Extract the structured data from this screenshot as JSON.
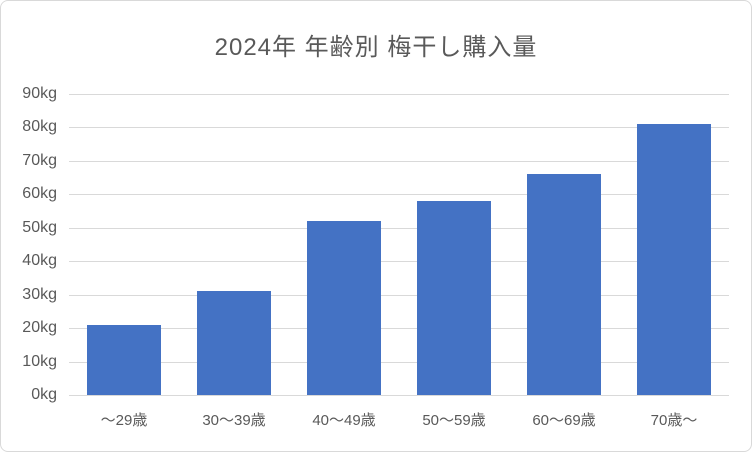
{
  "chart_data": {
    "type": "bar",
    "title": "2024年 年齢別 梅干し購入量",
    "categories": [
      "～29歳",
      "30～39歳",
      "40～49歳",
      "50～59歳",
      "60～69歳",
      "70歳～"
    ],
    "values": [
      21,
      31,
      52,
      58,
      66,
      81
    ],
    "unit": "kg",
    "ylim": [
      0,
      90
    ],
    "ytick_step": 10,
    "ytick_labels": [
      "0kg",
      "10kg",
      "20kg",
      "30kg",
      "40kg",
      "50kg",
      "60kg",
      "70kg",
      "80kg",
      "90kg"
    ],
    "xlabel": "",
    "ylabel": "",
    "grid": true,
    "legend": false,
    "bar_color": "#4472C4",
    "gridline_color": "#D9D9D9",
    "text_color": "#595959",
    "frame_border_color": "#D9D9D9",
    "background_color": "#FFFFFF"
  }
}
